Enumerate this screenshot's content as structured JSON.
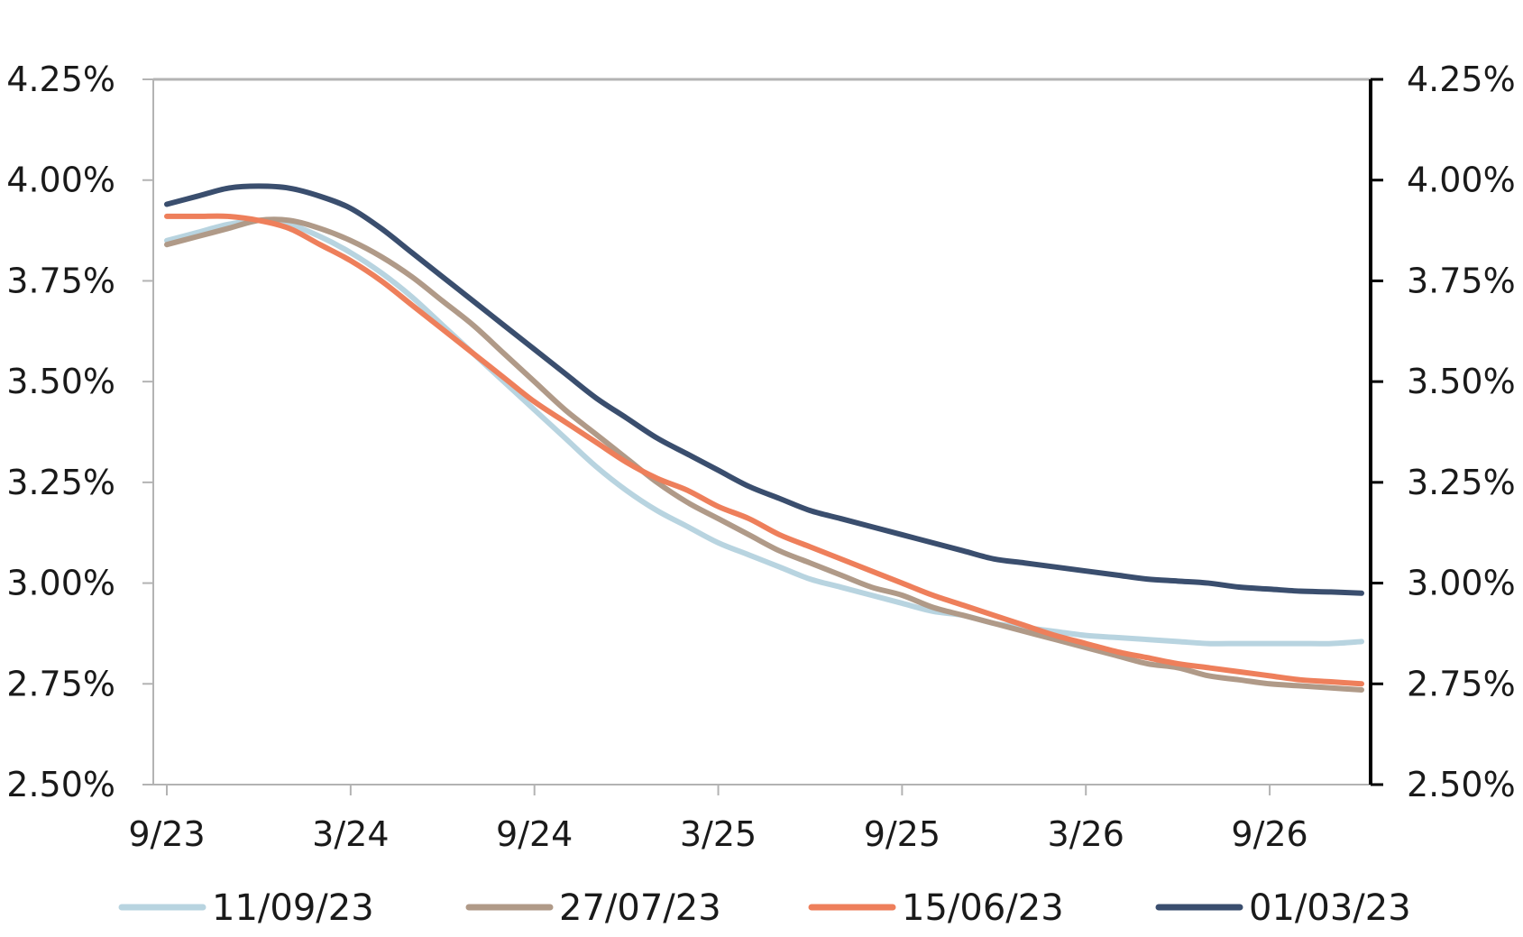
{
  "chart_data": {
    "type": "line",
    "title": "",
    "xlabel": "",
    "ylabel": "",
    "x_ticks": [
      "9/23",
      "3/24",
      "9/24",
      "3/25",
      "9/25",
      "3/26",
      "9/26"
    ],
    "y_ticks": [
      "2.50%",
      "2.75%",
      "3.00%",
      "3.25%",
      "3.50%",
      "3.75%",
      "4.00%",
      "4.25%"
    ],
    "ylim": [
      2.5,
      4.25
    ],
    "xlim": [
      "2023-09",
      "2026-12"
    ],
    "grid": false,
    "right_axis": true,
    "legend_position": "bottom",
    "x": [
      "2023-09",
      "2023-10",
      "2023-11",
      "2023-12",
      "2024-01",
      "2024-02",
      "2024-03",
      "2024-04",
      "2024-05",
      "2024-06",
      "2024-07",
      "2024-08",
      "2024-09",
      "2024-10",
      "2024-11",
      "2024-12",
      "2025-01",
      "2025-02",
      "2025-03",
      "2025-04",
      "2025-05",
      "2025-06",
      "2025-07",
      "2025-08",
      "2025-09",
      "2025-10",
      "2025-11",
      "2025-12",
      "2026-01",
      "2026-02",
      "2026-03",
      "2026-04",
      "2026-05",
      "2026-06",
      "2026-07",
      "2026-08",
      "2026-09",
      "2026-10",
      "2026-11",
      "2026-12"
    ],
    "series": [
      {
        "name": "11/09/23",
        "color": "#b8d4e0",
        "values": [
          3.85,
          3.87,
          3.89,
          3.9,
          3.89,
          3.86,
          3.82,
          3.77,
          3.71,
          3.64,
          3.57,
          3.5,
          3.43,
          3.36,
          3.29,
          3.23,
          3.18,
          3.14,
          3.1,
          3.07,
          3.04,
          3.01,
          2.99,
          2.97,
          2.95,
          2.93,
          2.92,
          2.9,
          2.89,
          2.88,
          2.87,
          2.865,
          2.86,
          2.855,
          2.85,
          2.85,
          2.85,
          2.85,
          2.85,
          2.855
        ]
      },
      {
        "name": "27/07/23",
        "color": "#b09a88",
        "values": [
          3.84,
          3.86,
          3.88,
          3.9,
          3.9,
          3.88,
          3.85,
          3.81,
          3.76,
          3.7,
          3.64,
          3.57,
          3.5,
          3.43,
          3.37,
          3.31,
          3.25,
          3.2,
          3.16,
          3.12,
          3.08,
          3.05,
          3.02,
          2.99,
          2.97,
          2.94,
          2.92,
          2.9,
          2.88,
          2.86,
          2.84,
          2.82,
          2.8,
          2.79,
          2.77,
          2.76,
          2.75,
          2.745,
          2.74,
          2.735
        ]
      },
      {
        "name": "15/06/23",
        "color": "#ee7f5b",
        "values": [
          3.91,
          3.91,
          3.91,
          3.9,
          3.88,
          3.84,
          3.8,
          3.75,
          3.69,
          3.63,
          3.57,
          3.51,
          3.45,
          3.4,
          3.35,
          3.3,
          3.26,
          3.23,
          3.19,
          3.16,
          3.12,
          3.09,
          3.06,
          3.03,
          3.0,
          2.97,
          2.945,
          2.92,
          2.895,
          2.87,
          2.85,
          2.83,
          2.815,
          2.8,
          2.79,
          2.78,
          2.77,
          2.76,
          2.755,
          2.75
        ]
      },
      {
        "name": "01/03/23",
        "color": "#3a4e6e",
        "values": [
          3.94,
          3.96,
          3.98,
          3.985,
          3.98,
          3.96,
          3.93,
          3.88,
          3.82,
          3.76,
          3.7,
          3.64,
          3.58,
          3.52,
          3.46,
          3.41,
          3.36,
          3.32,
          3.28,
          3.24,
          3.21,
          3.18,
          3.16,
          3.14,
          3.12,
          3.1,
          3.08,
          3.06,
          3.05,
          3.04,
          3.03,
          3.02,
          3.01,
          3.005,
          3.0,
          2.99,
          2.985,
          2.98,
          2.978,
          2.975
        ]
      }
    ]
  }
}
